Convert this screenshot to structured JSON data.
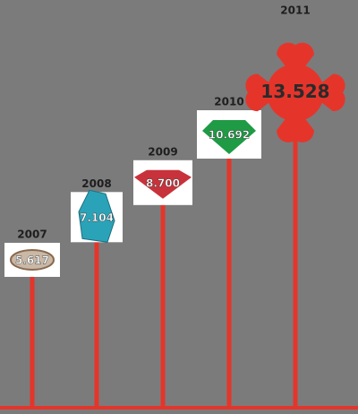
{
  "chart_data": {
    "type": "bar",
    "categories": [
      "2007",
      "2008",
      "2009",
      "2010",
      "2011"
    ],
    "values": [
      5.617,
      7.104,
      8.7,
      10.692,
      13.528
    ],
    "value_labels": [
      "5.617",
      "7.104",
      "8.700",
      "10.692",
      "13.528"
    ],
    "color": "#e5352b",
    "colors": [
      "#c9b8a6",
      "#2aa3b8",
      "#c8323a",
      "#1f9a45",
      "#e5352b"
    ]
  }
}
